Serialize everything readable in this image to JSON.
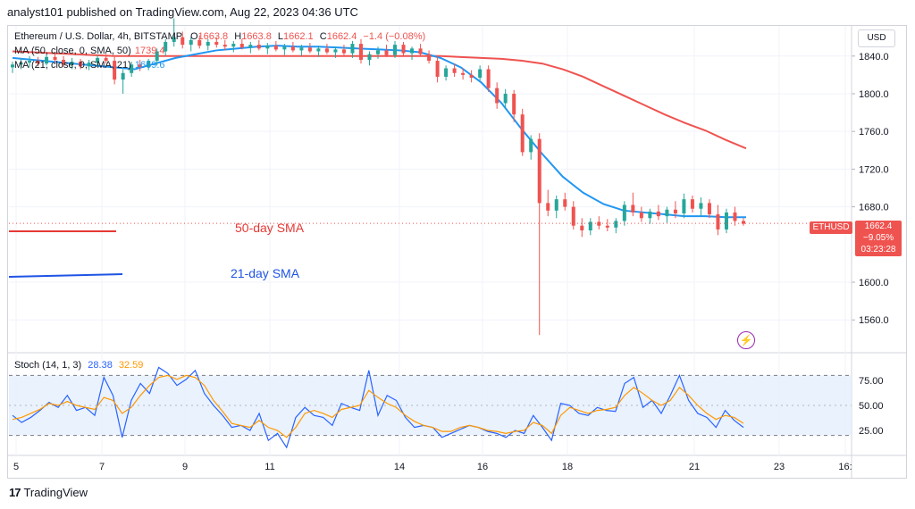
{
  "header": {
    "text": "analyst101 published on TradingView.com, Aug 22, 2023 04:36 UTC"
  },
  "legend": {
    "symbol_line": "Ethereum / U.S. Dollar, 4h, BITSTAMP",
    "ohlc": [
      {
        "k": "O",
        "v": "1663.8"
      },
      {
        "k": "H",
        "v": "1663.8"
      },
      {
        "k": "L",
        "v": "1662.1"
      },
      {
        "k": "C",
        "v": "1662.4"
      }
    ],
    "change": "−1.4 (−0.08%)",
    "ma50_label": "MA (50, close, 0, SMA, 50)",
    "ma50_value": "1739.4",
    "ma21_label": "MA (21, close, 0, SMA, 21)",
    "ma21_value": "1669.6",
    "stoch_label": "Stoch (14, 1, 3)",
    "stoch_k": "28.38",
    "stoch_d": "32.59"
  },
  "currency_button": "USD",
  "price_badge": {
    "symbol": "ETHUSD",
    "price": "1662.4",
    "change": "−9.05%",
    "countdown": "03:23:28"
  },
  "annotations": {
    "sma50": "50-day SMA",
    "sma21": "21-day SMA"
  },
  "footer": {
    "logo": "17",
    "brand": "TradingView"
  },
  "colors": {
    "up": "#26a69a",
    "down": "#ef5350",
    "ma50": "#ef5350",
    "ma21": "#2196f3",
    "stoch_k": "#2962ff",
    "stoch_d": "#ff9800",
    "annot_red": "#e53935",
    "annot_blue": "#1e53e5"
  },
  "chart_data": [
    {
      "type": "candlestick",
      "title": "Ethereum / U.S. Dollar, 4h, BITSTAMP",
      "x_ticks": [
        "5",
        "7",
        "9",
        "11",
        "14",
        "16",
        "18",
        "21",
        "23",
        "16:"
      ],
      "y_ticks": [
        1840,
        1800,
        1760,
        1720,
        1680,
        1600,
        1560
      ],
      "ylim": [
        1528,
        1872
      ],
      "last_price": 1662.4,
      "candles": [
        [
          1828,
          1834,
          1822,
          1831
        ],
        [
          1831,
          1838,
          1826,
          1833
        ],
        [
          1833,
          1840,
          1828,
          1835
        ],
        [
          1835,
          1839,
          1829,
          1832
        ],
        [
          1832,
          1842,
          1830,
          1839
        ],
        [
          1839,
          1843,
          1833,
          1836
        ],
        [
          1836,
          1840,
          1829,
          1831
        ],
        [
          1831,
          1838,
          1826,
          1834
        ],
        [
          1834,
          1837,
          1826,
          1829
        ],
        [
          1829,
          1836,
          1825,
          1833
        ],
        [
          1833,
          1841,
          1829,
          1838
        ],
        [
          1838,
          1842,
          1832,
          1835
        ],
        [
          1835,
          1839,
          1810,
          1815
        ],
        [
          1815,
          1826,
          1800,
          1822
        ],
        [
          1822,
          1834,
          1818,
          1831
        ],
        [
          1831,
          1836,
          1824,
          1828
        ],
        [
          1828,
          1837,
          1825,
          1835
        ],
        [
          1835,
          1848,
          1830,
          1845
        ],
        [
          1845,
          1858,
          1840,
          1855
        ],
        [
          1855,
          1880,
          1850,
          1860
        ],
        [
          1860,
          1866,
          1848,
          1852
        ],
        [
          1852,
          1860,
          1845,
          1857
        ],
        [
          1857,
          1862,
          1848,
          1851
        ],
        [
          1851,
          1858,
          1846,
          1855
        ],
        [
          1855,
          1860,
          1849,
          1852
        ],
        [
          1852,
          1857,
          1846,
          1850
        ],
        [
          1850,
          1856,
          1844,
          1853
        ],
        [
          1853,
          1858,
          1847,
          1849
        ],
        [
          1849,
          1855,
          1843,
          1852
        ],
        [
          1852,
          1857,
          1846,
          1848
        ],
        [
          1848,
          1854,
          1842,
          1851
        ],
        [
          1851,
          1856,
          1845,
          1847
        ],
        [
          1847,
          1853,
          1841,
          1850
        ],
        [
          1850,
          1855,
          1844,
          1846
        ],
        [
          1846,
          1852,
          1840,
          1849
        ],
        [
          1849,
          1854,
          1843,
          1845
        ],
        [
          1845,
          1851,
          1839,
          1848
        ],
        [
          1848,
          1853,
          1842,
          1844
        ],
        [
          1844,
          1850,
          1838,
          1847
        ],
        [
          1847,
          1852,
          1841,
          1843
        ],
        [
          1843,
          1856,
          1838,
          1853
        ],
        [
          1853,
          1858,
          1832,
          1836
        ],
        [
          1836,
          1845,
          1830,
          1842
        ],
        [
          1842,
          1850,
          1837,
          1846
        ],
        [
          1846,
          1852,
          1839,
          1841
        ],
        [
          1841,
          1856,
          1838,
          1852
        ],
        [
          1852,
          1855,
          1840,
          1843
        ],
        [
          1843,
          1850,
          1836,
          1848
        ],
        [
          1848,
          1853,
          1840,
          1842
        ],
        [
          1842,
          1846,
          1832,
          1835
        ],
        [
          1835,
          1840,
          1812,
          1818
        ],
        [
          1818,
          1830,
          1814,
          1827
        ],
        [
          1827,
          1832,
          1818,
          1822
        ],
        [
          1822,
          1827,
          1815,
          1820
        ],
        [
          1820,
          1825,
          1812,
          1817
        ],
        [
          1817,
          1830,
          1814,
          1826
        ],
        [
          1826,
          1830,
          1802,
          1806
        ],
        [
          1806,
          1812,
          1784,
          1790
        ],
        [
          1790,
          1805,
          1785,
          1800
        ],
        [
          1800,
          1804,
          1770,
          1778
        ],
        [
          1778,
          1784,
          1734,
          1738
        ],
        [
          1738,
          1756,
          1730,
          1752
        ],
        [
          1752,
          1758,
          1544,
          1684
        ],
        [
          1684,
          1698,
          1670,
          1676
        ],
        [
          1676,
          1692,
          1668,
          1688
        ],
        [
          1688,
          1695,
          1676,
          1680
        ],
        [
          1680,
          1686,
          1656,
          1660
        ],
        [
          1660,
          1668,
          1648,
          1655
        ],
        [
          1655,
          1668,
          1650,
          1664
        ],
        [
          1664,
          1670,
          1656,
          1660
        ],
        [
          1660,
          1667,
          1654,
          1658
        ],
        [
          1658,
          1668,
          1652,
          1665
        ],
        [
          1665,
          1686,
          1660,
          1682
        ],
        [
          1682,
          1695,
          1670,
          1674
        ],
        [
          1674,
          1680,
          1664,
          1668
        ],
        [
          1668,
          1678,
          1662,
          1675
        ],
        [
          1675,
          1682,
          1666,
          1670
        ],
        [
          1670,
          1680,
          1663,
          1677
        ],
        [
          1677,
          1686,
          1668,
          1673
        ],
        [
          1673,
          1694,
          1668,
          1688
        ],
        [
          1688,
          1692,
          1674,
          1678
        ],
        [
          1678,
          1690,
          1670,
          1684
        ],
        [
          1684,
          1688,
          1668,
          1672
        ],
        [
          1672,
          1682,
          1650,
          1656
        ],
        [
          1656,
          1678,
          1652,
          1674
        ],
        [
          1674,
          1680,
          1660,
          1665
        ],
        [
          1665,
          1668,
          1660,
          1662
        ]
      ],
      "series": [
        {
          "name": "MA (50, close, 0, SMA, 50)",
          "y": [
            1845,
            1844,
            1843,
            1842,
            1841,
            1840,
            1840,
            1840,
            1840,
            1840,
            1840,
            1840,
            1840,
            1840,
            1840,
            1840,
            1840,
            1840,
            1840,
            1840,
            1840,
            1840,
            1839,
            1838,
            1837,
            1835,
            1832,
            1826,
            1818,
            1808,
            1798,
            1788,
            1778,
            1769,
            1761,
            1751,
            1742
          ]
        },
        {
          "name": "MA (21, close, 0, SMA, 21)",
          "y": [
            1838,
            1836,
            1834,
            1832,
            1830,
            1828,
            1826,
            1832,
            1838,
            1842,
            1846,
            1848,
            1850,
            1851,
            1850,
            1850,
            1849,
            1848,
            1847,
            1846,
            1844,
            1838,
            1828,
            1812,
            1790,
            1762,
            1736,
            1712,
            1695,
            1683,
            1676,
            1674,
            1672,
            1670,
            1670,
            1669,
            1669
          ]
        }
      ]
    },
    {
      "type": "line",
      "title": "Stoch (14, 1, 3)",
      "y_ticks": [
        75,
        50,
        25
      ],
      "ylim": [
        0,
        100
      ],
      "bands": [
        80,
        20
      ],
      "series": [
        {
          "name": "%K",
          "values": [
            40,
            33,
            38,
            45,
            53,
            48,
            60,
            45,
            48,
            40,
            78,
            60,
            18,
            55,
            72,
            62,
            88,
            82,
            70,
            76,
            85,
            62,
            50,
            40,
            28,
            30,
            25,
            42,
            15,
            22,
            8,
            38,
            48,
            40,
            38,
            30,
            52,
            48,
            45,
            85,
            40,
            60,
            55,
            38,
            28,
            30,
            28,
            18,
            22,
            26,
            30,
            28,
            24,
            22,
            18,
            25,
            22,
            40,
            28,
            15,
            52,
            50,
            42,
            40,
            48,
            45,
            44,
            72,
            78,
            48,
            55,
            42,
            60,
            80,
            55,
            42,
            38,
            28,
            45,
            35,
            28
          ]
        },
        {
          "name": "%D",
          "values": [
            36,
            38,
            42,
            46,
            52,
            50,
            54,
            50,
            48,
            46,
            58,
            55,
            42,
            48,
            60,
            70,
            78,
            80,
            76,
            80,
            78,
            70,
            55,
            44,
            32,
            30,
            28,
            35,
            28,
            25,
            18,
            28,
            42,
            45,
            42,
            38,
            46,
            48,
            50,
            65,
            58,
            52,
            48,
            40,
            34,
            30,
            28,
            24,
            24,
            28,
            30,
            28,
            25,
            24,
            22,
            24,
            25,
            33,
            30,
            22,
            40,
            48,
            45,
            42,
            45,
            46,
            48,
            60,
            68,
            62,
            55,
            50,
            55,
            68,
            60,
            50,
            42,
            36,
            40,
            38,
            32
          ]
        }
      ]
    }
  ]
}
